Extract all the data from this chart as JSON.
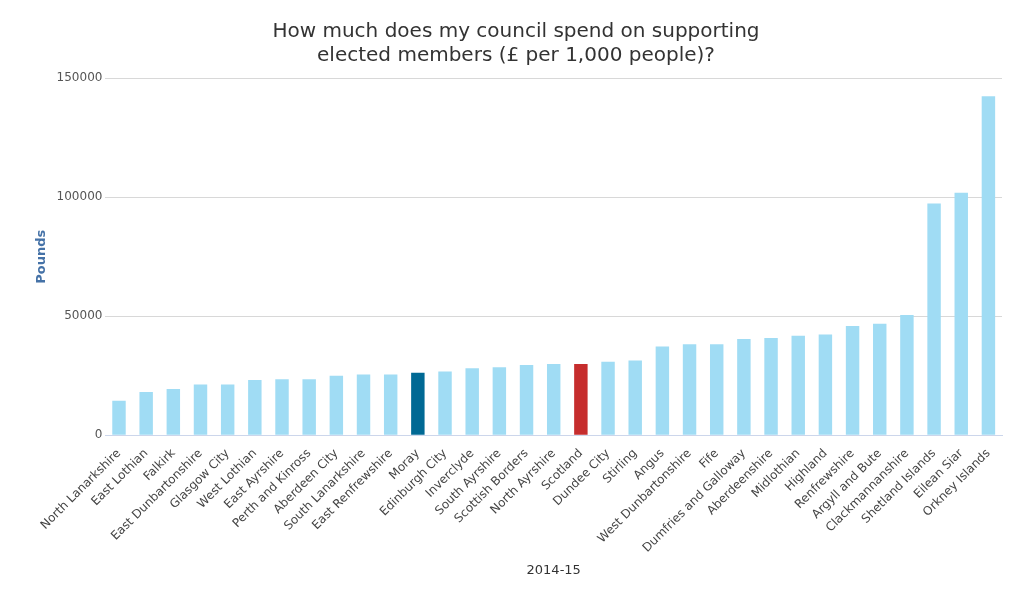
{
  "chart_data": {
    "type": "bar",
    "title": [
      "How much does my council spend on supporting",
      "elected members (£ per 1,000 people)?"
    ],
    "xlabel": "2014-15",
    "ylabel": "Pounds",
    "categories": [
      "North Lanarkshire",
      "East Lothian",
      "Falkirk",
      "East Dunbartonshire",
      "Glasgow City",
      "West Lothian",
      "East Ayrshire",
      "Perth and Kinross",
      "Aberdeen City",
      "South Lanarkshire",
      "East Renfrewshire",
      "Moray",
      "Edinburgh City",
      "Inverclyde",
      "South Ayrshire",
      "Scottish Borders",
      "North Ayrshire",
      "Scotland",
      "Dundee City",
      "Stirling",
      "Angus",
      "West Dunbartonshire",
      "Fife",
      "Dumfries and Galloway",
      "Aberdeenshire",
      "Midlothian",
      "Highland",
      "Renfrewshire",
      "Argyll and Bute",
      "Clackmannanshire",
      "Shetland Islands",
      "Eilean Siar",
      "Orkney Islands"
    ],
    "values": [
      14500,
      18200,
      19500,
      21400,
      21400,
      23200,
      23600,
      23600,
      25000,
      25500,
      25500,
      26300,
      26800,
      28200,
      28600,
      29500,
      30000,
      30000,
      30900,
      31400,
      37300,
      38200,
      38200,
      40500,
      40900,
      41800,
      42300,
      45900,
      46800,
      50500,
      97300,
      101800,
      142300
    ],
    "colors": [
      "#a0dcf4",
      "#a0dcf4",
      "#a0dcf4",
      "#a0dcf4",
      "#a0dcf4",
      "#a0dcf4",
      "#a0dcf4",
      "#a0dcf4",
      "#a0dcf4",
      "#a0dcf4",
      "#a0dcf4",
      "#006994",
      "#a0dcf4",
      "#a0dcf4",
      "#a0dcf4",
      "#a0dcf4",
      "#a0dcf4",
      "#c62d2d",
      "#a0dcf4",
      "#a0dcf4",
      "#a0dcf4",
      "#a0dcf4",
      "#a0dcf4",
      "#a0dcf4",
      "#a0dcf4",
      "#a0dcf4",
      "#a0dcf4",
      "#a0dcf4",
      "#a0dcf4",
      "#a0dcf4",
      "#a0dcf4",
      "#a0dcf4",
      "#a0dcf4"
    ],
    "ylim": [
      0,
      150000
    ],
    "yticks": [
      0,
      50000,
      100000,
      150000
    ],
    "grid": "y",
    "legend": false
  }
}
